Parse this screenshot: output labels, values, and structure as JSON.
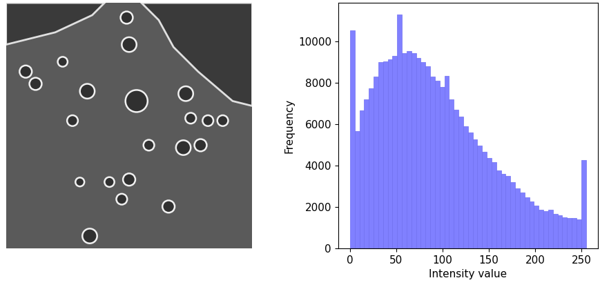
{
  "chart_data": {
    "type": "histogram",
    "x_label": "Intensity value",
    "y_label": "Frequency",
    "bins": [
      0,
      5.1,
      10.2,
      15.3,
      20.4,
      25.5,
      30.6,
      35.7,
      40.8,
      45.9,
      51,
      56.1,
      61.2,
      66.3,
      71.4,
      76.5,
      81.6,
      86.7,
      91.8,
      96.9,
      102,
      107.1,
      112.2,
      117.3,
      122.4,
      127.5,
      132.6,
      137.7,
      142.8,
      147.9,
      153,
      158.1,
      163.2,
      168.3,
      173.4,
      178.5,
      183.6,
      188.7,
      193.8,
      198.9,
      204,
      209.1,
      214.2,
      219.3,
      224.4,
      229.5,
      234.6,
      239.7,
      244.8,
      249.9,
      255
    ],
    "values": [
      10550,
      5650,
      6650,
      7200,
      7750,
      8300,
      9000,
      9050,
      9150,
      9300,
      11300,
      9450,
      9550,
      9450,
      9200,
      9000,
      8800,
      8300,
      8100,
      7800,
      8350,
      7200,
      6700,
      6350,
      5900,
      5600,
      5250,
      4950,
      4650,
      4350,
      4150,
      3750,
      3600,
      3500,
      3200,
      2900,
      2700,
      2450,
      2250,
      2050,
      1850,
      1800,
      1850,
      1650,
      1600,
      1500,
      1450,
      1450,
      1400,
      4250
    ],
    "color": "#8080ff",
    "xlim": [
      -12.75,
      267.75
    ],
    "xticks": [
      0,
      50,
      100,
      150,
      200,
      250
    ],
    "ylim": [
      0,
      11865
    ],
    "yticks": [
      0,
      2000,
      4000,
      6000,
      8000,
      10000
    ],
    "grid": false
  }
}
